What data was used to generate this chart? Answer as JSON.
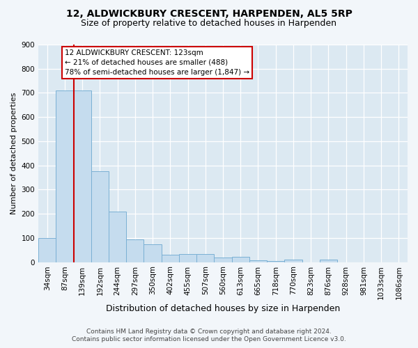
{
  "title1": "12, ALDWICKBURY CRESCENT, HARPENDEN, AL5 5RP",
  "title2": "Size of property relative to detached houses in Harpenden",
  "xlabel": "Distribution of detached houses by size in Harpenden",
  "ylabel": "Number of detached properties",
  "footer1": "Contains HM Land Registry data © Crown copyright and database right 2024.",
  "footer2": "Contains public sector information licensed under the Open Government Licence v3.0.",
  "bin_labels": [
    "34sqm",
    "87sqm",
    "139sqm",
    "192sqm",
    "244sqm",
    "297sqm",
    "350sqm",
    "402sqm",
    "455sqm",
    "507sqm",
    "560sqm",
    "613sqm",
    "665sqm",
    "718sqm",
    "770sqm",
    "823sqm",
    "876sqm",
    "928sqm",
    "981sqm",
    "1033sqm",
    "1086sqm"
  ],
  "bar_heights": [
    100,
    710,
    710,
    375,
    208,
    95,
    75,
    30,
    32,
    32,
    20,
    22,
    7,
    5,
    10,
    0,
    10,
    0,
    0,
    0,
    0
  ],
  "bar_color": "#c5dcee",
  "bar_edge_color": "#7ab0d4",
  "annotation_line1": "12 ALDWICKBURY CRESCENT: 123sqm",
  "annotation_line2": "← 21% of detached houses are smaller (488)",
  "annotation_line3": "78% of semi-detached houses are larger (1,847) →",
  "red_line_bar_index": 2,
  "ylim": [
    0,
    900
  ],
  "yticks": [
    0,
    100,
    200,
    300,
    400,
    500,
    600,
    700,
    800,
    900
  ],
  "bg_color": "#f2f6fa",
  "plot_bg_color": "#dce9f2",
  "grid_color": "#ffffff",
  "annotation_box_facecolor": "#ffffff",
  "annotation_box_edgecolor": "#cc0000",
  "red_line_color": "#cc0000",
  "title1_fontsize": 10,
  "title2_fontsize": 9,
  "ylabel_fontsize": 8,
  "xlabel_fontsize": 9,
  "tick_fontsize": 7.5,
  "footer_fontsize": 6.5
}
